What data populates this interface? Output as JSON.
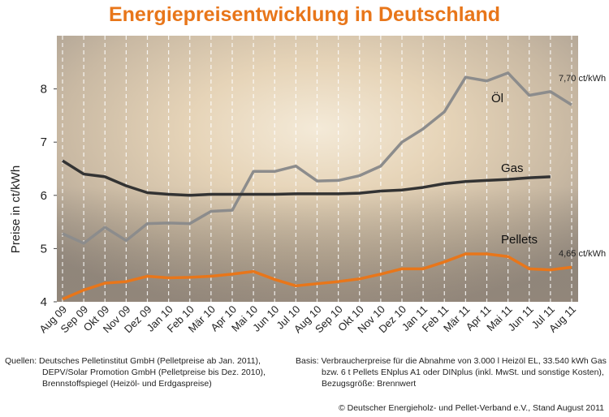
{
  "chart_data": {
    "type": "line",
    "title": "Energiepreisentwicklung in Deutschland",
    "y_label": "Preise in ct/kWh",
    "categories": [
      "Aug 09",
      "Sep 09",
      "Okt 09",
      "Nov 09",
      "Dez 09",
      "Jan 10",
      "Feb 10",
      "Mär 10",
      "Apr 10",
      "Mai 10",
      "Jun 10",
      "Jul 10",
      "Aug 10",
      "Sep 10",
      "Okt 10",
      "Nov 10",
      "Dez 10",
      "Jan 11",
      "Feb 11",
      "Mär 11",
      "Apr 11",
      "Mai 11",
      "Jun 11",
      "Jul 11",
      "Aug 11"
    ],
    "series": [
      {
        "name": "Öl",
        "color": "#8c8c8c",
        "end_label": "7,70 ct/kWh",
        "values": [
          5.28,
          5.1,
          5.4,
          5.15,
          5.47,
          5.48,
          5.47,
          5.7,
          5.72,
          6.45,
          6.45,
          6.55,
          6.27,
          6.28,
          6.37,
          6.55,
          7.0,
          7.25,
          7.57,
          8.22,
          8.15,
          8.3,
          7.88,
          7.95,
          7.7
        ]
      },
      {
        "name": "Gas",
        "color": "#333333",
        "values": [
          6.65,
          6.4,
          6.35,
          6.18,
          6.05,
          6.02,
          6.0,
          6.02,
          6.02,
          6.02,
          6.02,
          6.03,
          6.03,
          6.03,
          6.04,
          6.08,
          6.1,
          6.15,
          6.22,
          6.26,
          6.28,
          6.3,
          6.33,
          6.35,
          null
        ]
      },
      {
        "name": "Pellets",
        "color": "#e8761a",
        "end_label": "4,65 ct/kWh",
        "values": [
          4.05,
          4.22,
          4.35,
          4.38,
          4.48,
          4.45,
          4.46,
          4.48,
          4.52,
          4.57,
          4.42,
          4.3,
          4.34,
          4.38,
          4.43,
          4.52,
          4.62,
          4.62,
          4.75,
          4.9,
          4.9,
          4.85,
          4.62,
          4.6,
          4.65
        ]
      }
    ],
    "ylim": [
      4,
      9
    ],
    "yticks": [
      4,
      5,
      6,
      7,
      8
    ],
    "sources": [
      "Quellen: Deutsches Pelletinstitut GmbH (Pelletpreise ab Jan. 2011),",
      "DEPV/Solar Promotion GmbH (Pelletpreise bis Dez. 2010),",
      "Brennstoffspiegel (Heizöl- und Erdgaspreise)"
    ],
    "basis": [
      "Basis: Verbraucherpreise für die Abnahme von 3.000 l Heizöl EL, 33.540 kWh Gas",
      "bzw. 6 t Pellets ENplus A1 oder DINplus (inkl. MwSt. und sonstige Kosten),",
      "Bezugsgröße: Brennwert"
    ],
    "copyright": "© Deutscher Energieholz- und Pellet-Verband e.V., Stand August 2011"
  }
}
